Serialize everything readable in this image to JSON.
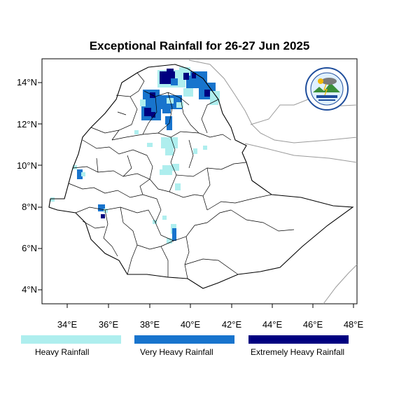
{
  "map": {
    "title": "Exceptional Rainfall for 26-27 Jun 2025",
    "lon_ticks": [
      "34°E",
      "36°E",
      "38°E",
      "40°E",
      "42°E",
      "44°E",
      "46°E",
      "48°E"
    ],
    "lat_ticks": [
      "14°N",
      "12°N",
      "10°N",
      "8°N",
      "6°N",
      "4°N"
    ],
    "lon_range": [
      32.8,
      48.2
    ],
    "lat_range": [
      3.2,
      15.0
    ]
  },
  "legend": [
    {
      "label": "Heavy Rainfall",
      "color": "#aeeeee"
    },
    {
      "label": "Very Heavy Rainfall",
      "color": "#1874cd"
    },
    {
      "label": "Extremely Heavy Rainfall",
      "color": "#000080"
    }
  ],
  "logo": {
    "icon": "meteorology-institute-logo"
  }
}
